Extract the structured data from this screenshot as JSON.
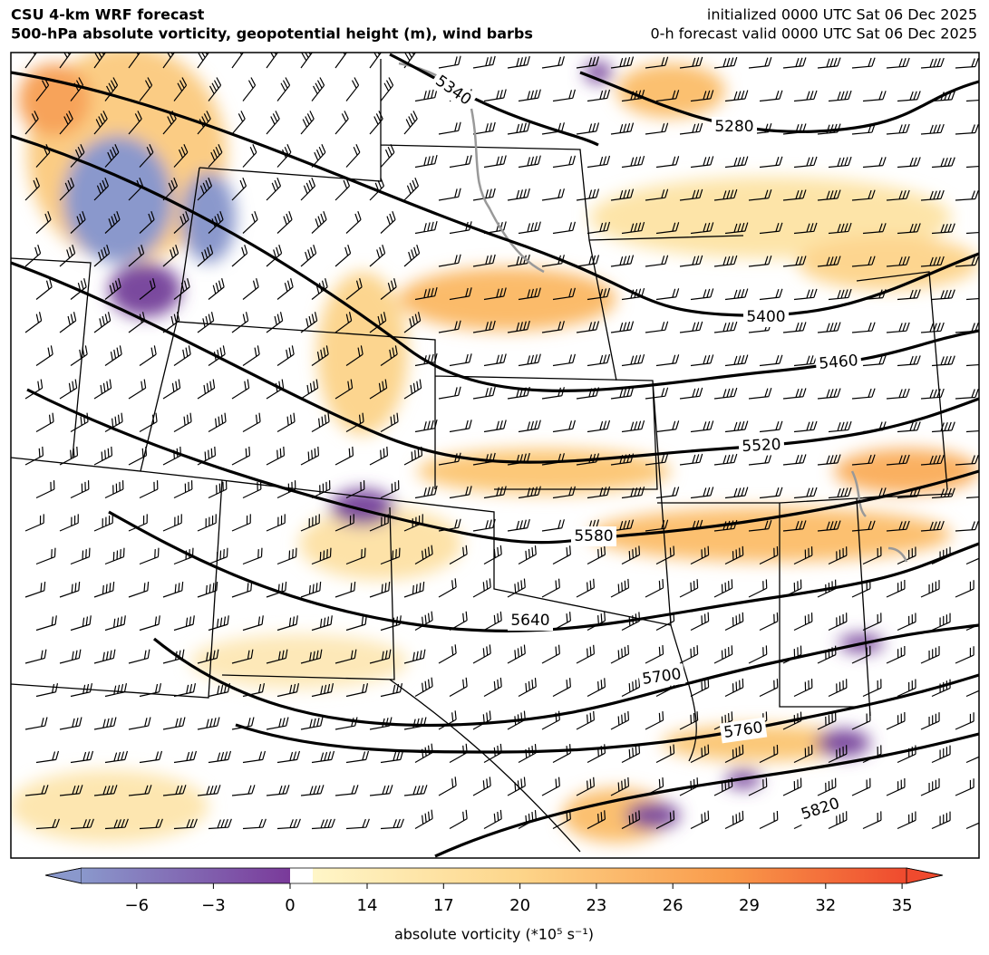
{
  "header": {
    "title": "CSU 4-km WRF forecast",
    "subtitle": "500-hPa absolute vorticity, geopotential height (m), wind barbs",
    "initialized": "initialized 0000 UTC Sat 06 Dec 2025",
    "valid": "0-h forecast valid 0000 UTC Sat 06 Dec 2025"
  },
  "map": {
    "contour_labels": [
      5280,
      5340,
      5400,
      5460,
      5520,
      5580,
      5640,
      5700,
      5760,
      5820
    ]
  },
  "colorbar": {
    "ticks": [
      {
        "value": -6,
        "label": "−6"
      },
      {
        "value": -3,
        "label": "−3"
      },
      0,
      14,
      17,
      20,
      23,
      26,
      29,
      32,
      35
    ],
    "label": "absolute vorticity (*10⁵ s⁻¹)"
  }
}
